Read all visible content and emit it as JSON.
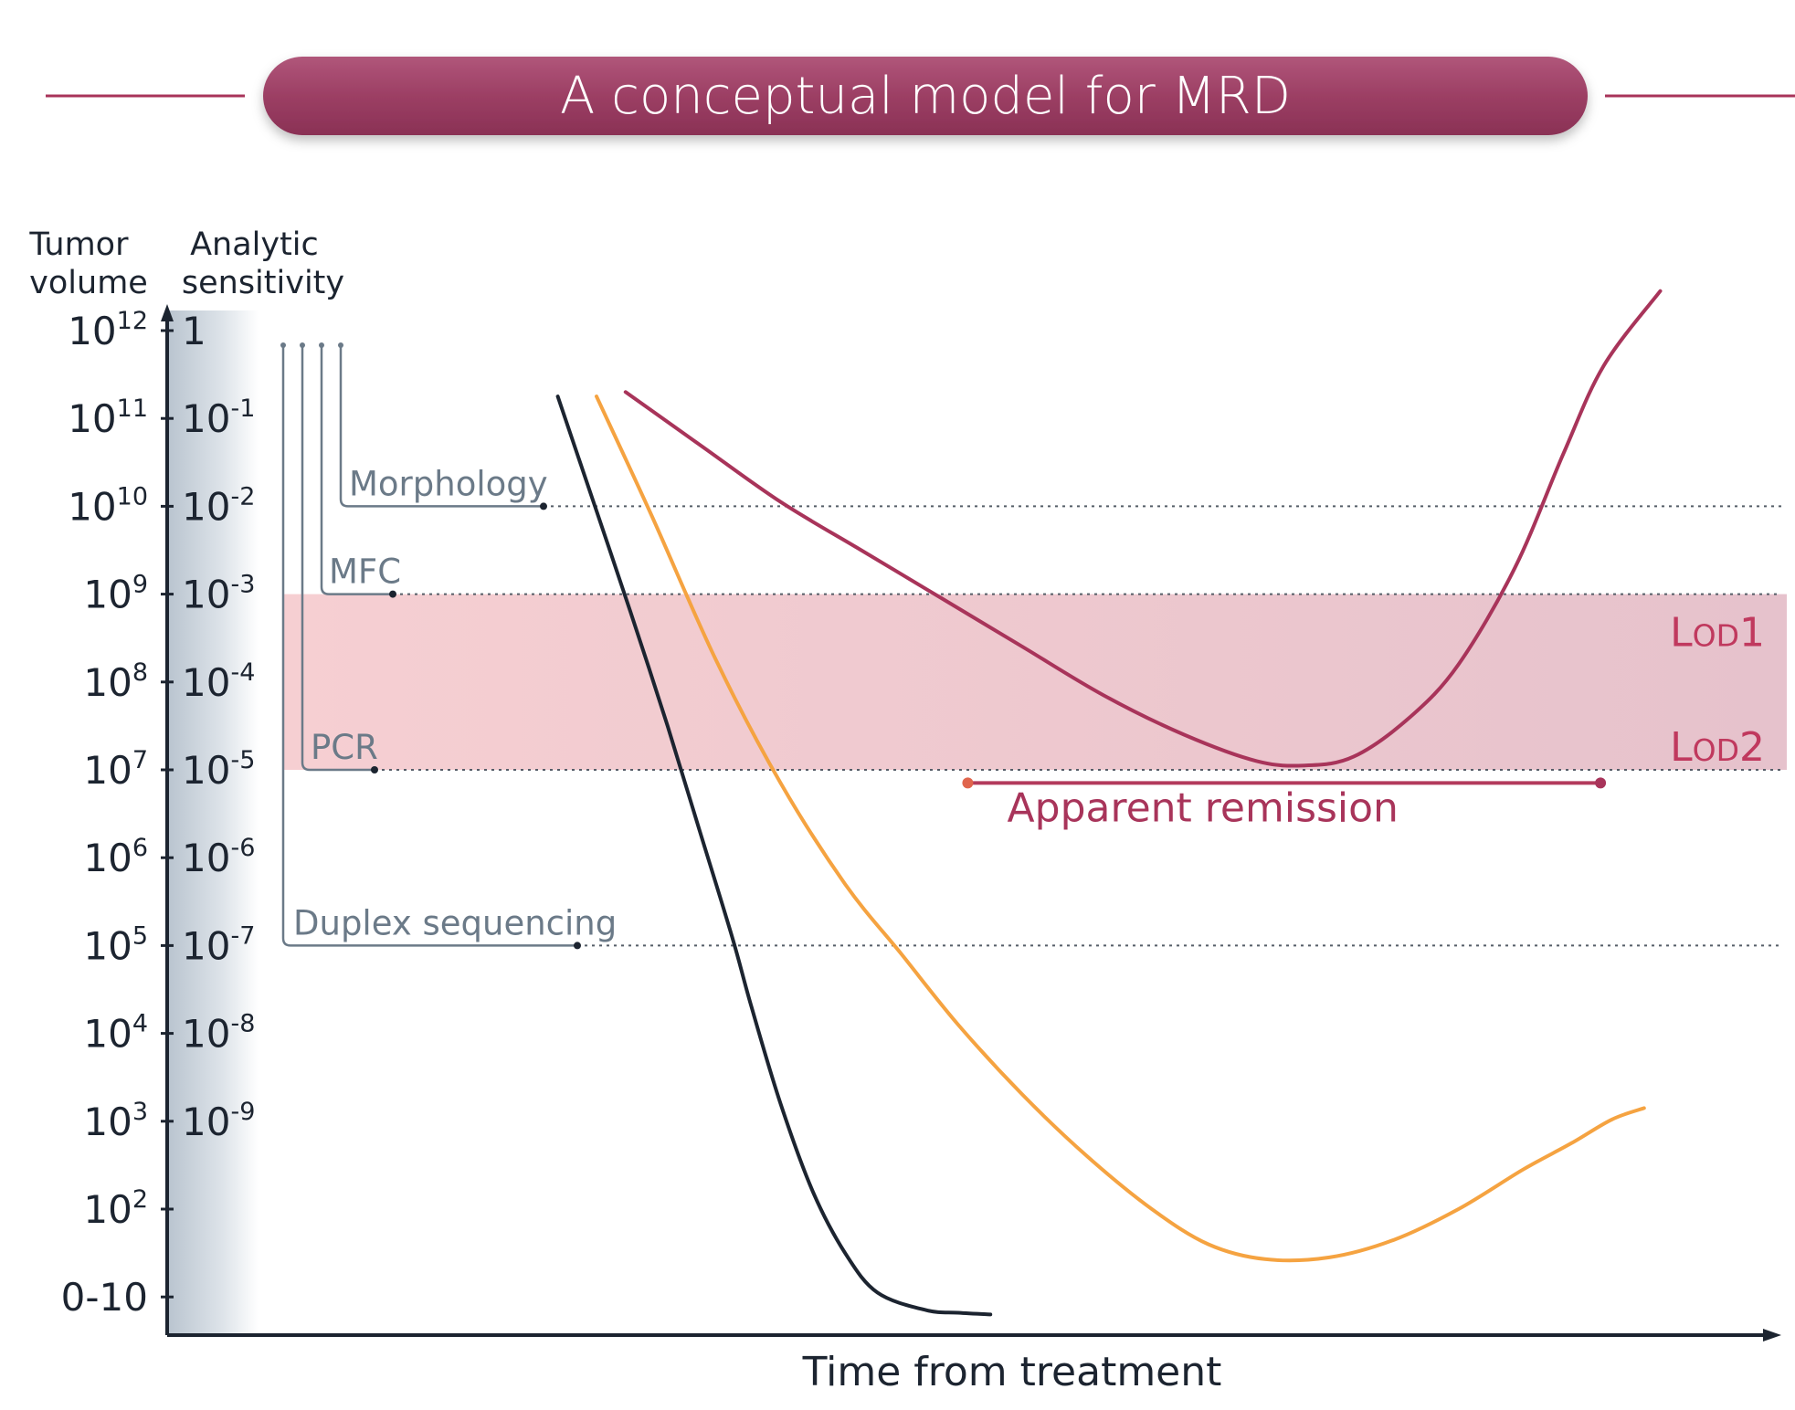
{
  "title": "A conceptual model for MRD",
  "chart_data": {
    "type": "line",
    "title": "A conceptual model for MRD",
    "xlabel": "Time from treatment",
    "ylabel_left": [
      "Tumor",
      "volume"
    ],
    "ylabel_right": [
      "Analytic",
      "sensitivity"
    ],
    "y_ticks": [
      {
        "base": "10",
        "exp": "12",
        "sens_base": "1",
        "sens_exp": "",
        "level": 12
      },
      {
        "base": "10",
        "exp": "11",
        "sens_base": "10",
        "sens_exp": "-1",
        "level": 11
      },
      {
        "base": "10",
        "exp": "10",
        "sens_base": "10",
        "sens_exp": "-2",
        "level": 10
      },
      {
        "base": "10",
        "exp": "9",
        "sens_base": "10",
        "sens_exp": "-3",
        "level": 9
      },
      {
        "base": "10",
        "exp": "8",
        "sens_base": "10",
        "sens_exp": "-4",
        "level": 8
      },
      {
        "base": "10",
        "exp": "7",
        "sens_base": "10",
        "sens_exp": "-5",
        "level": 7
      },
      {
        "base": "10",
        "exp": "6",
        "sens_base": "10",
        "sens_exp": "-6",
        "level": 6
      },
      {
        "base": "10",
        "exp": "5",
        "sens_base": "10",
        "sens_exp": "-7",
        "level": 5
      },
      {
        "base": "10",
        "exp": "4",
        "sens_base": "10",
        "sens_exp": "-8",
        "level": 4
      },
      {
        "base": "10",
        "exp": "3",
        "sens_base": "10",
        "sens_exp": "-9",
        "level": 3
      },
      {
        "base": "10",
        "exp": "2",
        "sens_base": "",
        "sens_exp": "",
        "level": 2
      },
      {
        "base": "0-10",
        "exp": "",
        "sens_base": "",
        "sens_exp": "",
        "level": 1
      }
    ],
    "y_range_log10": [
      0.65,
      12.15
    ],
    "x_range": [
      0,
      100
    ],
    "methods": [
      {
        "name": "Morphology",
        "level": 10
      },
      {
        "name": "MFC",
        "level": 9
      },
      {
        "name": "PCR",
        "level": 7
      },
      {
        "name": "Duplex sequencing",
        "level": 5
      }
    ],
    "lod_band": {
      "upper_level": 9,
      "lower_level": 7,
      "upper_label": {
        "cap": "L",
        "small": "OD",
        "num": "1"
      },
      "lower_label": {
        "cap": "L",
        "small": "OD",
        "num": "2"
      }
    },
    "apparent_remission": {
      "label": "Apparent remission",
      "x_start": 49.6,
      "x_end": 88.8,
      "level": 6.85
    },
    "series": [
      {
        "name": "black",
        "color": "#1c2430",
        "points": [
          [
            24.2,
            11.25
          ],
          [
            26.5,
            10.0
          ],
          [
            28.7,
            8.8
          ],
          [
            31.0,
            7.5
          ],
          [
            33.0,
            6.3
          ],
          [
            35.0,
            5.1
          ],
          [
            36.2,
            4.3
          ],
          [
            38.0,
            3.2
          ],
          [
            40.0,
            2.2
          ],
          [
            42.0,
            1.5
          ],
          [
            44.0,
            1.05
          ],
          [
            47.0,
            0.85
          ],
          [
            49.0,
            0.82
          ],
          [
            51.0,
            0.8
          ]
        ]
      },
      {
        "name": "orange",
        "color": "#f5a341",
        "points": [
          [
            26.6,
            11.25
          ],
          [
            30.0,
            9.9
          ],
          [
            34.0,
            8.25
          ],
          [
            38.0,
            6.85
          ],
          [
            42.0,
            5.7
          ],
          [
            45.5,
            4.9
          ],
          [
            49.0,
            4.1
          ],
          [
            53.0,
            3.3
          ],
          [
            57.0,
            2.6
          ],
          [
            61.0,
            2.0
          ],
          [
            64.5,
            1.6
          ],
          [
            68.0,
            1.43
          ],
          [
            72.0,
            1.45
          ],
          [
            76.0,
            1.65
          ],
          [
            80.0,
            2.0
          ],
          [
            84.0,
            2.45
          ],
          [
            87.0,
            2.75
          ],
          [
            89.5,
            3.02
          ],
          [
            91.5,
            3.15
          ]
        ]
      },
      {
        "name": "crimson",
        "color": "#a8345a",
        "points": [
          [
            28.4,
            11.3
          ],
          [
            33.0,
            10.7
          ],
          [
            38.0,
            10.05
          ],
          [
            43.0,
            9.5
          ],
          [
            48.0,
            8.95
          ],
          [
            53.0,
            8.4
          ],
          [
            58.0,
            7.85
          ],
          [
            63.0,
            7.4
          ],
          [
            67.5,
            7.1
          ],
          [
            70.5,
            7.05
          ],
          [
            73.5,
            7.15
          ],
          [
            77.0,
            7.6
          ],
          [
            80.0,
            8.2
          ],
          [
            83.5,
            9.3
          ],
          [
            86.5,
            10.6
          ],
          [
            89.0,
            11.6
          ],
          [
            92.5,
            12.45
          ]
        ]
      }
    ]
  }
}
